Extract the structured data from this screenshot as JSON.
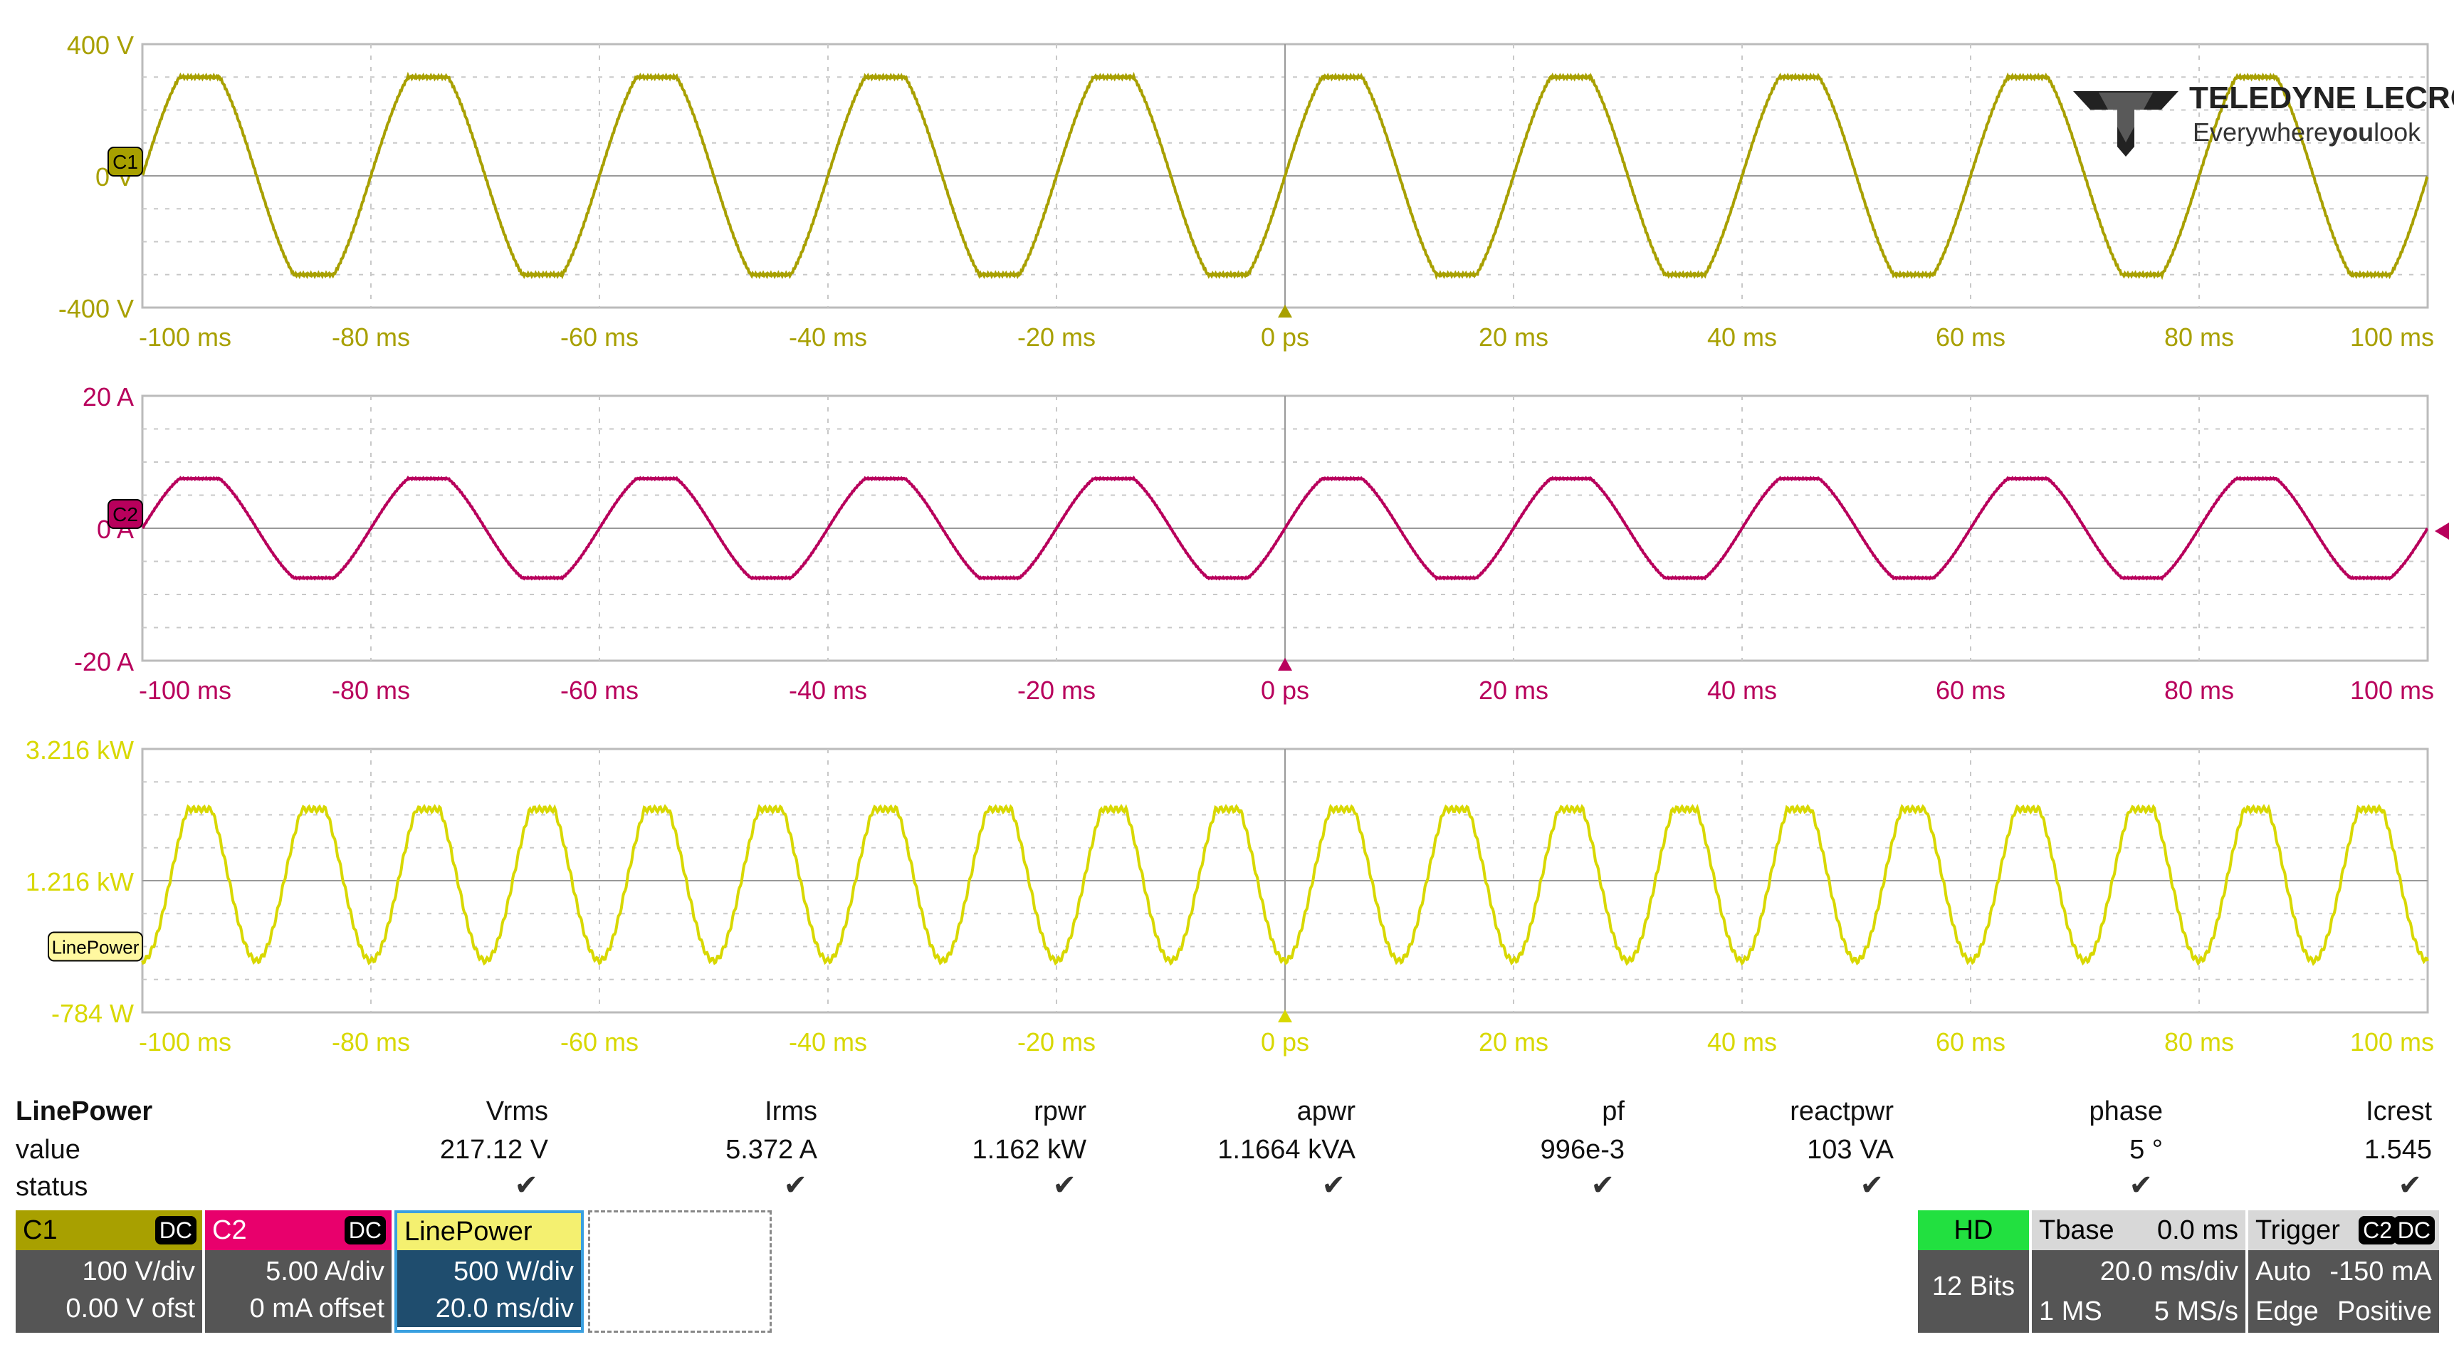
{
  "brand": {
    "name": "TELEDYNE LECROY",
    "tagline_a": "Everywhere",
    "tagline_b": "you",
    "tagline_c": "look"
  },
  "colors": {
    "c1": "#a8a000",
    "c2": "#b8005c",
    "power": "#d8d800",
    "grid": "#c8c8c8"
  },
  "x_ticks": [
    "-100 ms",
    "-80 ms",
    "-60 ms",
    "-40 ms",
    "-20 ms",
    "0 ps",
    "20 ms",
    "40 ms",
    "60 ms",
    "80 ms",
    "100 ms"
  ],
  "panels": [
    {
      "id": "c1",
      "tag": "C1",
      "y_labels": [
        "400 V",
        "0 V",
        "-400 V"
      ]
    },
    {
      "id": "c2",
      "tag": "C2",
      "y_labels": [
        "20 A",
        "0 A",
        "-20 A"
      ]
    },
    {
      "id": "power",
      "tag": "LinePower",
      "y_labels": [
        "3.216 kW",
        "1.216 kW",
        "",
        "-784 W"
      ]
    }
  ],
  "chart_data": [
    {
      "type": "line",
      "title": "",
      "xlabel": "",
      "ylabel": "",
      "series": [
        {
          "name": "C1",
          "amplitude": 300,
          "frequency_hz": 50
        }
      ],
      "xlim": [
        -100,
        100
      ],
      "ylim": [
        -400,
        400
      ]
    },
    {
      "type": "line",
      "title": "",
      "xlabel": "",
      "ylabel": "",
      "series": [
        {
          "name": "C2",
          "amplitude": 7.5,
          "frequency_hz": 50
        }
      ],
      "xlim": [
        -100,
        100
      ],
      "ylim": [
        -20,
        20
      ]
    },
    {
      "type": "line",
      "title": "",
      "xlabel": "",
      "ylabel": "",
      "series": [
        {
          "name": "LinePower",
          "min": 0,
          "max": 2300,
          "frequency_hz": 100
        }
      ],
      "xlim": [
        -100,
        100
      ],
      "ylim": [
        -784,
        3216
      ]
    }
  ],
  "measurements": {
    "row_labels": {
      "title": "LinePower",
      "value": "value",
      "status": "status"
    },
    "columns": [
      {
        "name": "Vrms",
        "value": "217.12 V"
      },
      {
        "name": "Irms",
        "value": "5.372 A"
      },
      {
        "name": "rpwr",
        "value": "1.162 kW"
      },
      {
        "name": "apwr",
        "value": "1.1664 kVA"
      },
      {
        "name": "pf",
        "value": "996e-3"
      },
      {
        "name": "reactpwr",
        "value": "103 VA"
      },
      {
        "name": "phase",
        "value": "5 °"
      },
      {
        "name": "Icrest",
        "value": "1.545"
      }
    ],
    "check": "✔"
  },
  "channels": [
    {
      "name": "C1",
      "coupling": "DC",
      "scale": "100 V/div",
      "offset": "0.00 V ofst"
    },
    {
      "name": "C2",
      "coupling": "DC",
      "scale": "5.00 A/div",
      "offset": "0 mA offset"
    },
    {
      "name": "LinePower",
      "scale": "500 W/div",
      "timebase": "20.0 ms/div"
    }
  ],
  "acq": {
    "mode": "HD",
    "bits": "12 Bits"
  },
  "tbase": {
    "label": "Tbase",
    "delay": "0.0 ms",
    "scale": "20.0 ms/div",
    "points": "1 MS",
    "rate": "5 MS/s"
  },
  "trigger": {
    "label": "Trigger",
    "src": "C2",
    "coupling": "DC",
    "mode": "Auto",
    "level": "-150 mA",
    "type": "Edge",
    "slope": "Positive"
  }
}
